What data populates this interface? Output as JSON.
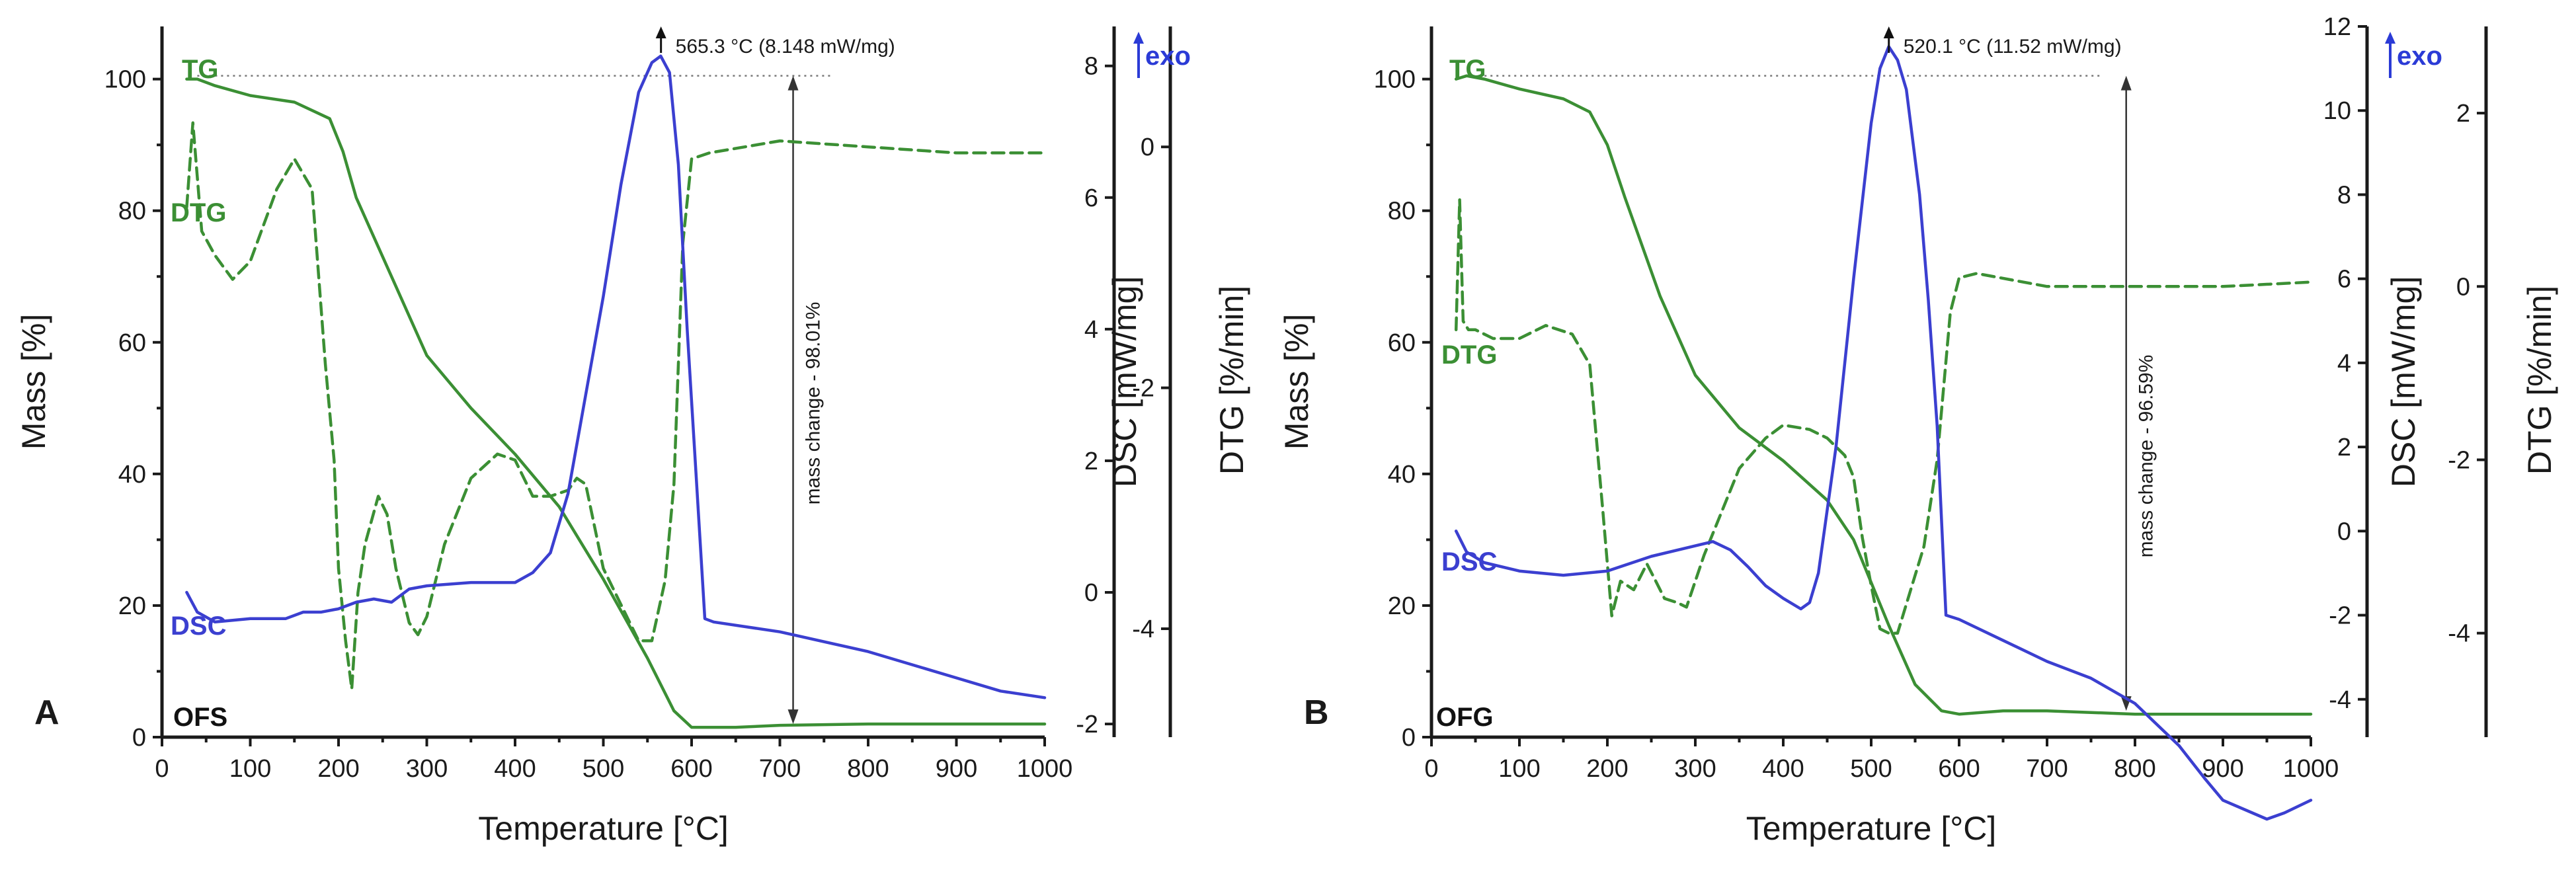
{
  "colors": {
    "tg": "#3b8f34",
    "dtg": "#3b8f34",
    "dsc": "#3b3fd0",
    "axis": "#1a1a1a",
    "exo": "#2b3bd6"
  },
  "chart_data": [
    {
      "type": "line",
      "panel": "A",
      "sample": "OFS",
      "xlabel": "Temperature [°C]",
      "ylabel_left": "Mass [%]",
      "ylabel_dsc": "DSC [mW/mg]",
      "ylabel_dtg": "DTG [%/min]",
      "xlim": [
        0,
        1000
      ],
      "xticks": [
        0,
        100,
        200,
        300,
        400,
        500,
        600,
        700,
        800,
        900,
        1000
      ],
      "mass_ylim": [
        0,
        108
      ],
      "mass_ticks": [
        0,
        20,
        40,
        60,
        80,
        100
      ],
      "dsc_ylim": [
        -2.2,
        8.6
      ],
      "dsc_ticks": [
        -2,
        0,
        2,
        4,
        6,
        8
      ],
      "dtg_ylim": [
        -4.9,
        1.0
      ],
      "dtg_ticks": [
        -4,
        -2,
        0
      ],
      "labels": {
        "tg": "TG",
        "dtg": "DTG",
        "dsc": "DSC",
        "exo": "exo"
      },
      "peak_annotation": "565.3 °C (8.148 mW/mg)",
      "mass_change_label": "mass change - 98.01%",
      "peak_temp": 565.3,
      "mass_change_top": 100.5,
      "mass_change_bottom": 2,
      "series": [
        {
          "name": "TG",
          "axis": "mass",
          "style": "solid",
          "x": [
            28,
            40,
            60,
            100,
            150,
            190,
            205,
            220,
            260,
            300,
            350,
            400,
            450,
            500,
            550,
            580,
            600,
            650,
            700,
            800,
            900,
            1000
          ],
          "y": [
            100,
            100,
            99,
            97.5,
            96.5,
            94,
            89,
            82,
            70,
            58,
            50,
            43,
            35,
            24,
            12,
            4,
            1.5,
            1.5,
            1.8,
            2,
            2,
            2
          ]
        },
        {
          "name": "DTG",
          "axis": "dtg",
          "style": "dashed",
          "x": [
            28,
            35,
            45,
            60,
            80,
            100,
            130,
            150,
            170,
            185,
            195,
            200,
            208,
            215,
            222,
            230,
            245,
            255,
            265,
            280,
            290,
            300,
            320,
            350,
            380,
            400,
            420,
            440,
            460,
            470,
            480,
            500,
            520,
            540,
            555,
            570,
            580,
            590,
            600,
            620,
            700,
            800,
            900,
            1000
          ],
          "y": [
            -0.5,
            0.2,
            -0.7,
            -0.9,
            -1.1,
            -0.95,
            -0.35,
            -0.1,
            -0.35,
            -1.8,
            -2.6,
            -3.5,
            -4.1,
            -4.5,
            -3.7,
            -3.3,
            -2.9,
            -3.05,
            -3.5,
            -3.95,
            -4.05,
            -3.9,
            -3.3,
            -2.75,
            -2.55,
            -2.6,
            -2.9,
            -2.9,
            -2.85,
            -2.75,
            -2.8,
            -3.5,
            -3.8,
            -4.1,
            -4.1,
            -3.6,
            -2.8,
            -0.8,
            -0.1,
            -0.05,
            0.05,
            0.0,
            -0.05,
            -0.05
          ]
        },
        {
          "name": "DSC",
          "axis": "dsc",
          "style": "solid",
          "x": [
            28,
            40,
            60,
            100,
            140,
            160,
            180,
            200,
            220,
            240,
            260,
            280,
            300,
            350,
            400,
            420,
            440,
            460,
            480,
            500,
            520,
            540,
            555,
            565,
            575,
            585,
            595,
            605,
            615,
            625,
            700,
            800,
            900,
            950,
            1000
          ],
          "y": [
            0.0,
            -0.3,
            -0.45,
            -0.4,
            -0.4,
            -0.3,
            -0.3,
            -0.25,
            -0.15,
            -0.1,
            -0.15,
            0.05,
            0.1,
            0.15,
            0.15,
            0.3,
            0.6,
            1.5,
            3.0,
            4.5,
            6.2,
            7.6,
            8.05,
            8.15,
            7.9,
            6.5,
            4.0,
            1.8,
            -0.4,
            -0.45,
            -0.6,
            -0.9,
            -1.3,
            -1.5,
            -1.6
          ]
        }
      ]
    },
    {
      "type": "line",
      "panel": "B",
      "sample": "OFG",
      "xlabel": "Temperature [°C]",
      "ylabel_left": "Mass [%]",
      "ylabel_dsc": "DSC [mW/mg]",
      "ylabel_dtg": "DTG [%/min]",
      "xlim": [
        0,
        1000
      ],
      "xticks": [
        0,
        100,
        200,
        300,
        400,
        500,
        600,
        700,
        800,
        900,
        1000
      ],
      "mass_ylim": [
        0,
        108
      ],
      "mass_ticks": [
        0,
        20,
        40,
        60,
        80,
        100
      ],
      "dsc_ylim": [
        -4.9,
        12.0
      ],
      "dsc_ticks": [
        -4,
        -2,
        0,
        2,
        4,
        6,
        8,
        10,
        12
      ],
      "dtg_ylim": [
        -5.2,
        3.0
      ],
      "dtg_ticks": [
        -4,
        -2,
        0,
        2
      ],
      "labels": {
        "tg": "TG",
        "dtg": "DTG",
        "dsc": "DSC",
        "exo": "exo"
      },
      "peak_annotation": "520.1 °C (11.52 mW/mg)",
      "mass_change_label": "mass change - 96.59%",
      "peak_temp": 520.1,
      "mass_change_top": 100.5,
      "mass_change_bottom": 4,
      "series": [
        {
          "name": "TG",
          "axis": "mass",
          "style": "solid",
          "x": [
            28,
            40,
            60,
            100,
            150,
            180,
            200,
            220,
            260,
            300,
            350,
            400,
            450,
            480,
            520,
            550,
            580,
            600,
            650,
            700,
            800,
            900,
            1000
          ],
          "y": [
            100,
            100.5,
            100,
            98.5,
            97,
            95,
            90,
            82,
            67,
            55,
            47,
            42,
            36,
            30,
            17,
            8,
            4,
            3.5,
            4,
            4,
            3.5,
            3.5,
            3.5
          ]
        },
        {
          "name": "DTG",
          "axis": "dtg",
          "style": "dashed",
          "x": [
            28,
            32,
            36,
            42,
            50,
            70,
            100,
            130,
            160,
            180,
            195,
            205,
            215,
            230,
            245,
            255,
            265,
            280,
            290,
            310,
            330,
            350,
            380,
            400,
            430,
            450,
            470,
            480,
            490,
            500,
            510,
            520,
            530,
            545,
            560,
            575,
            590,
            600,
            620,
            700,
            800,
            900,
            1000
          ],
          "y": [
            -0.5,
            1.0,
            -0.4,
            -0.5,
            -0.5,
            -0.6,
            -0.6,
            -0.45,
            -0.55,
            -0.9,
            -2.6,
            -3.8,
            -3.4,
            -3.5,
            -3.2,
            -3.4,
            -3.6,
            -3.65,
            -3.7,
            -3.1,
            -2.6,
            -2.1,
            -1.75,
            -1.6,
            -1.65,
            -1.75,
            -1.95,
            -2.2,
            -2.9,
            -3.45,
            -3.95,
            -4.0,
            -4.0,
            -3.5,
            -3.0,
            -2.0,
            -0.3,
            0.1,
            0.15,
            0.0,
            0.0,
            0.0,
            0.05
          ]
        },
        {
          "name": "DSC",
          "axis": "dsc",
          "style": "solid",
          "x": [
            28,
            40,
            60,
            100,
            150,
            200,
            250,
            300,
            320,
            340,
            360,
            380,
            400,
            420,
            430,
            440,
            460,
            480,
            500,
            510,
            520,
            530,
            540,
            555,
            565,
            575,
            585,
            600,
            650,
            700,
            750,
            800,
            850,
            880,
            900,
            950,
            970,
            1000
          ],
          "y": [
            0.0,
            -0.5,
            -0.75,
            -0.95,
            -1.05,
            -0.95,
            -0.6,
            -0.35,
            -0.25,
            -0.45,
            -0.85,
            -1.3,
            -1.6,
            -1.85,
            -1.7,
            -1.0,
            2.0,
            6.0,
            9.7,
            11.0,
            11.52,
            11.2,
            10.5,
            8.0,
            5.5,
            2.5,
            -2.0,
            -2.1,
            -2.6,
            -3.1,
            -3.5,
            -4.1,
            -5.1,
            -5.9,
            -6.4,
            -6.85,
            -6.7,
            -6.4
          ]
        }
      ]
    }
  ]
}
